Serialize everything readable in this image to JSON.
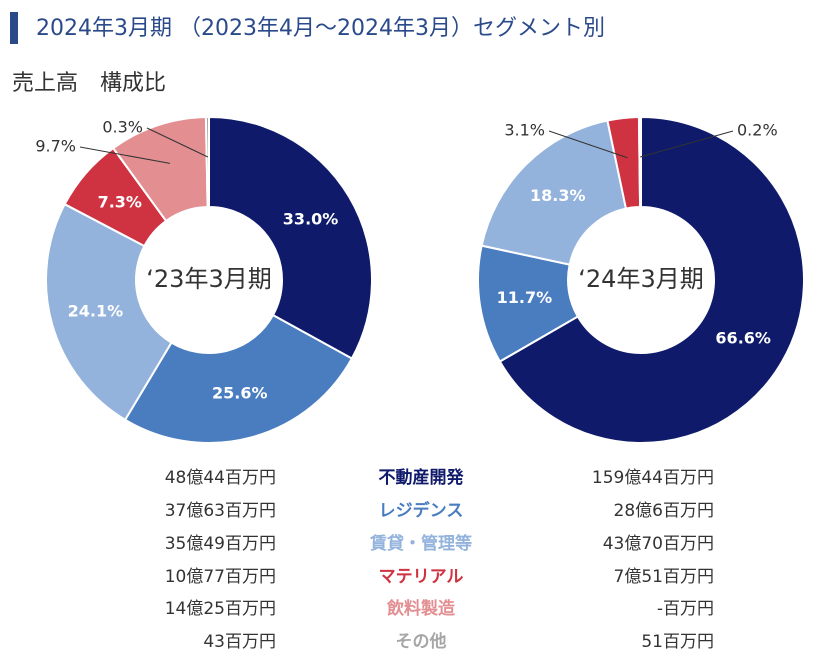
{
  "title": "2024年3月期 （2023年4月～2024年3月）セグメント別",
  "subtitle": "売上高　構成比",
  "segments": {
    "names": [
      "不動産開発",
      "レジデンス",
      "賃貸・管理等",
      "マテリアル",
      "飲料製造",
      "その他"
    ],
    "colors": [
      "#0f1a6b",
      "#4a7cc0",
      "#93b3dc",
      "#cf3240",
      "#e38f92",
      "#a6a6a6"
    ]
  },
  "chart_data": [
    {
      "type": "pie",
      "title": "‘23年3月期",
      "values": [
        33.0,
        25.6,
        24.1,
        7.3,
        9.7,
        0.3
      ],
      "value_labels": [
        "33.0%",
        "25.6%",
        "24.1%",
        "7.3%",
        "9.7%",
        "0.3%"
      ],
      "amounts": [
        "48億44百万円",
        "37億63百万円",
        "35億49百万円",
        "10億77百万円",
        "14億25百万円",
        "43百万円"
      ]
    },
    {
      "type": "pie",
      "title": "‘24年3月期",
      "values": [
        66.6,
        11.7,
        18.3,
        3.1,
        null,
        0.2
      ],
      "value_labels": [
        "66.6%",
        "11.7%",
        "18.3%",
        "3.1%",
        null,
        "0.2%"
      ],
      "amounts": [
        "159億44百万円",
        "28億6百万円",
        "43億70百万円",
        "7億51百万円",
        "-百万円",
        "51百万円"
      ]
    }
  ]
}
